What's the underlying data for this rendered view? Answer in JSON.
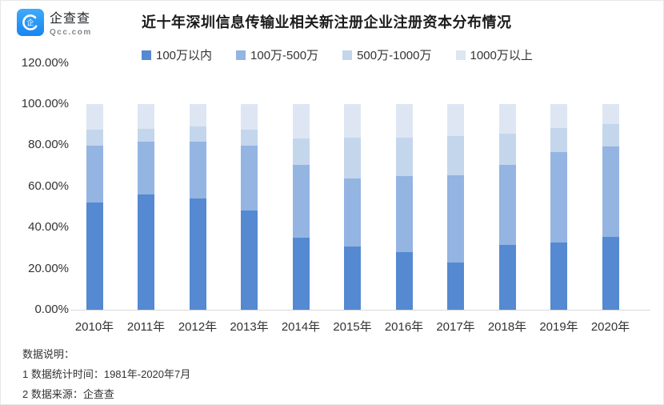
{
  "logo": {
    "name": "企查查",
    "domain": "Qcc.com"
  },
  "title": "近十年深圳信息传输业相关新注册企业注册资本分布情况",
  "chart_data": {
    "type": "bar",
    "stacked": true,
    "title": "近十年深圳信息传输业相关新注册企业注册资本分布情况",
    "xlabel": "",
    "ylabel": "",
    "grid": false,
    "legend_position": "top",
    "ylim": [
      0,
      120
    ],
    "y_ticks": [
      "0.00%",
      "20.00%",
      "40.00%",
      "60.00%",
      "80.00%",
      "100.00%",
      "120.00%"
    ],
    "y_tick_values": [
      0,
      20,
      40,
      60,
      80,
      100,
      120
    ],
    "categories": [
      "2010年",
      "2011年",
      "2012年",
      "2013年",
      "2014年",
      "2015年",
      "2016年",
      "2017年",
      "2018年",
      "2019年",
      "2020年"
    ],
    "series": [
      {
        "name": "100万以内",
        "color": "#5589d1",
        "values": [
          52.3,
          55.9,
          54.0,
          48.1,
          35.1,
          30.6,
          28.0,
          22.9,
          31.5,
          32.5,
          35.5
        ]
      },
      {
        "name": "100万-500万",
        "color": "#94b4e2",
        "values": [
          27.4,
          25.7,
          27.9,
          31.8,
          35.3,
          33.1,
          36.8,
          42.6,
          38.8,
          44.0,
          44.0
        ]
      },
      {
        "name": "500万-1000万",
        "color": "#c3d6ec",
        "values": [
          7.8,
          6.2,
          7.1,
          7.8,
          13.0,
          19.8,
          18.7,
          19.1,
          15.4,
          12.0,
          10.9
        ]
      },
      {
        "name": "1000万以上",
        "color": "#dde6f2",
        "values": [
          12.5,
          12.2,
          11.0,
          12.3,
          16.6,
          16.5,
          16.5,
          15.4,
          14.3,
          11.5,
          9.6
        ]
      }
    ]
  },
  "notes": {
    "heading": "数据说明：",
    "lines": [
      "1 数据统计时间：1981年-2020年7月",
      "2 数据来源：企查查"
    ]
  },
  "colors": {
    "brand_blue": "#2e9bf5",
    "axis_line": "#d9d9d9",
    "text": "#333333"
  }
}
